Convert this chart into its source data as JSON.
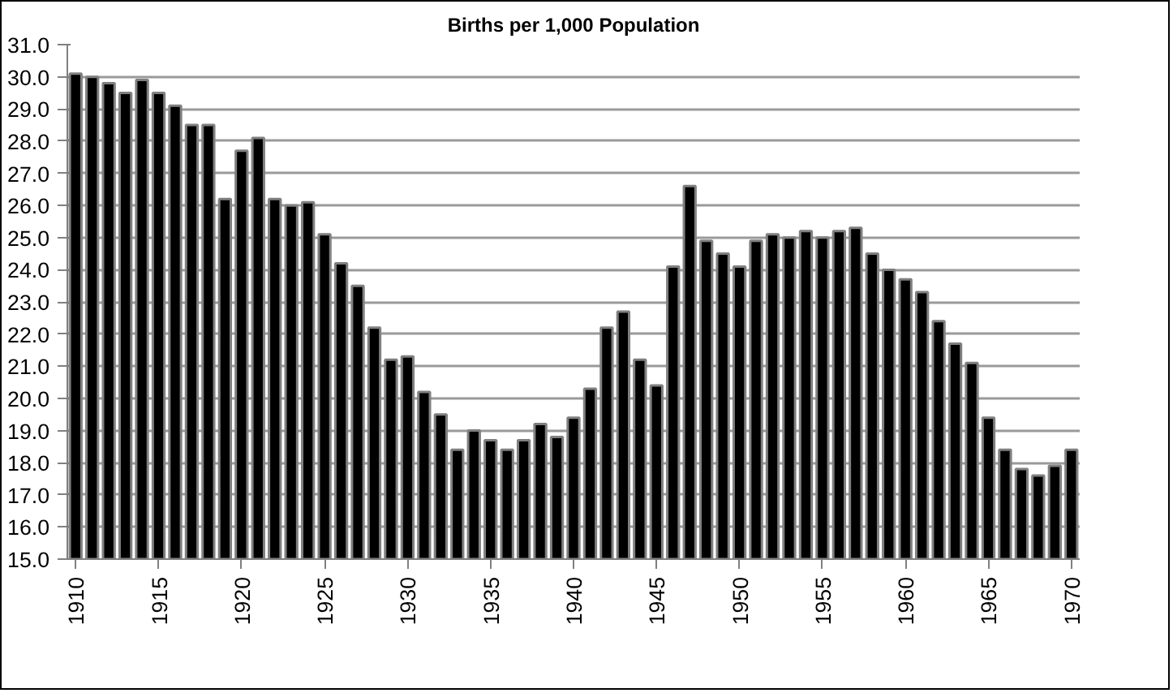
{
  "chart_data": {
    "type": "bar",
    "title": "Births per 1,000 Population",
    "categories": [
      "1910",
      null,
      null,
      null,
      null,
      "1915",
      null,
      null,
      null,
      null,
      "1920",
      null,
      null,
      null,
      null,
      "1925",
      null,
      null,
      null,
      null,
      "1930",
      null,
      null,
      null,
      null,
      "1935",
      null,
      null,
      null,
      null,
      "1940",
      null,
      null,
      null,
      null,
      "1945",
      null,
      null,
      null,
      null,
      "1950",
      null,
      null,
      null,
      null,
      "1955",
      null,
      null,
      null,
      null,
      "1960",
      null,
      null,
      null,
      null,
      "1965",
      null,
      null,
      null,
      null,
      "1970"
    ],
    "series": [
      {
        "color": "#000000",
        "values": [
          30.1,
          30.0,
          29.8,
          29.5,
          29.9,
          29.5,
          29.1,
          28.5,
          28.5,
          26.2,
          27.7,
          28.1,
          26.2,
          26.0,
          26.1,
          25.1,
          24.2,
          23.5,
          22.2,
          21.2,
          21.3,
          20.2,
          19.5,
          18.4,
          19.0,
          18.7,
          18.4,
          18.7,
          19.2,
          18.8,
          19.4,
          20.3,
          22.2,
          22.7,
          21.2,
          20.4,
          24.1,
          26.6,
          24.9,
          24.5,
          24.1,
          24.9,
          25.1,
          25.0,
          25.2,
          25.0,
          25.2,
          25.3,
          24.5,
          24.0,
          23.7,
          23.3,
          22.4,
          21.7,
          21.1,
          19.4,
          18.4,
          17.8,
          17.6,
          17.9,
          18.4
        ]
      }
    ],
    "ylim": [
      15,
      31
    ],
    "yticks": [
      {
        "value": 15,
        "label": "15.0"
      },
      {
        "value": 16,
        "label": "16.0"
      },
      {
        "value": 17,
        "label": "17.0"
      },
      {
        "value": 18,
        "label": "18.0"
      },
      {
        "value": 19,
        "label": "19.0"
      },
      {
        "value": 20,
        "label": "20.0"
      },
      {
        "value": 21,
        "label": "21.0"
      },
      {
        "value": 22,
        "label": "22.0"
      },
      {
        "value": 23,
        "label": "23.0"
      },
      {
        "value": 24,
        "label": "24.0"
      },
      {
        "value": 25,
        "label": "25.0"
      },
      {
        "value": 26,
        "label": "26.0"
      },
      {
        "value": 27,
        "label": "27.0"
      },
      {
        "value": 28,
        "label": "28.0"
      },
      {
        "value": 29,
        "label": "29.0"
      },
      {
        "value": 30,
        "label": "30.0"
      },
      {
        "value": 31,
        "label": "31.0"
      }
    ],
    "grid": "y"
  }
}
